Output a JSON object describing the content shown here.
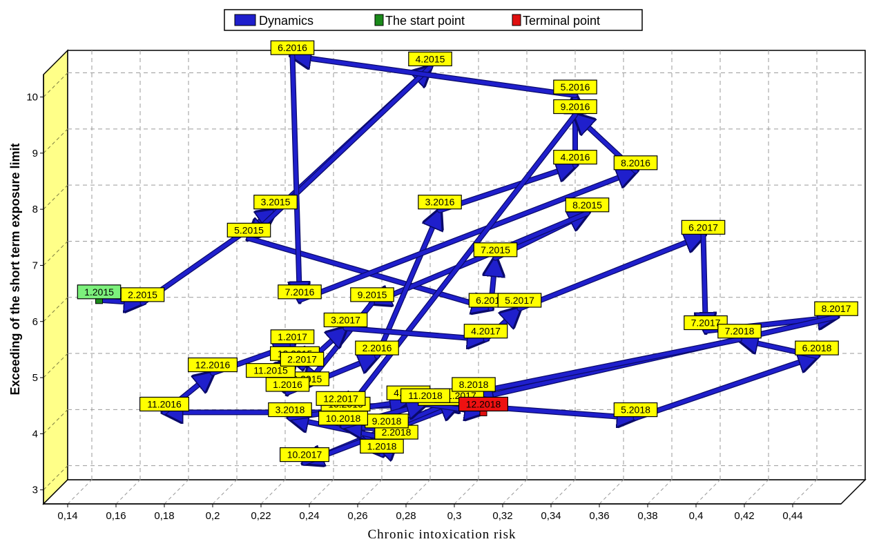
{
  "chart_data": {
    "type": "line",
    "title": "",
    "xlabel": "Chronic intoxication risk",
    "ylabel": "Exceeding of the short term exposure limit",
    "xlim": [
      0.13,
      0.46
    ],
    "ylim": [
      2.75,
      10.4
    ],
    "x_ticks": [
      0.14,
      0.16,
      0.18,
      0.2,
      0.22,
      0.24,
      0.26,
      0.28,
      0.3,
      0.32,
      0.34,
      0.36,
      0.38,
      0.4,
      0.42,
      0.44
    ],
    "x_tick_labels": [
      "0,14",
      "0,16",
      "0,18",
      "0,2",
      "0,22",
      "0,24",
      "0,26",
      "0,28",
      "0,3",
      "0,32",
      "0,34",
      "0,36",
      "0,38",
      "0,4",
      "0,42",
      "0,44"
    ],
    "y_ticks": [
      3,
      4,
      5,
      6,
      7,
      8,
      9,
      10
    ],
    "y_tick_labels": [
      "3",
      "4",
      "5",
      "6",
      "7",
      "8",
      "9",
      "10"
    ],
    "grid": true,
    "legend": {
      "placement": "top-center",
      "entries": [
        {
          "label": "Dynamics",
          "color": "#1f1fcc"
        },
        {
          "label": "The start point",
          "color": "#1a8a1a"
        },
        {
          "label": "Terminal point",
          "color": "#e01010"
        }
      ]
    },
    "series": [
      {
        "name": "Dynamics",
        "color": "#1f1fcc",
        "points": [
          {
            "label": "1.2015",
            "x": 0.143,
            "y": 5.95
          },
          {
            "label": "2.2015",
            "x": 0.161,
            "y": 5.9
          },
          {
            "label": "3.2015",
            "x": 0.216,
            "y": 7.55
          },
          {
            "label": "4.2015",
            "x": 0.28,
            "y": 10.1
          },
          {
            "label": "5.2015",
            "x": 0.205,
            "y": 7.05
          },
          {
            "label": "6.2015",
            "x": 0.305,
            "y": 5.8
          },
          {
            "label": "7.2015",
            "x": 0.307,
            "y": 6.7
          },
          {
            "label": "8.2015",
            "x": 0.345,
            "y": 7.5
          },
          {
            "label": "9.2015",
            "x": 0.256,
            "y": 5.9
          },
          {
            "label": "10.2015",
            "x": 0.228,
            "y": 4.4
          },
          {
            "label": "11.2015",
            "x": 0.214,
            "y": 4.55
          },
          {
            "label": "12.2015",
            "x": 0.224,
            "y": 4.85
          },
          {
            "label": "1.2016",
            "x": 0.221,
            "y": 4.3
          },
          {
            "label": "2.2016",
            "x": 0.258,
            "y": 4.95
          },
          {
            "label": "3.2016",
            "x": 0.284,
            "y": 7.55
          },
          {
            "label": "4.2016",
            "x": 0.34,
            "y": 8.35
          },
          {
            "label": "5.2016",
            "x": 0.34,
            "y": 9.6
          },
          {
            "label": "6.2016",
            "x": 0.223,
            "y": 10.3
          },
          {
            "label": "7.2016",
            "x": 0.226,
            "y": 5.95
          },
          {
            "label": "8.2016",
            "x": 0.365,
            "y": 8.25
          },
          {
            "label": "9.2016",
            "x": 0.34,
            "y": 9.25
          },
          {
            "label": "10.2016",
            "x": 0.245,
            "y": 3.95
          },
          {
            "label": "11.2016",
            "x": 0.17,
            "y": 3.95
          },
          {
            "label": "12.2016",
            "x": 0.19,
            "y": 4.65
          },
          {
            "label": "1.2017",
            "x": 0.223,
            "y": 5.15
          },
          {
            "label": "2.2017",
            "x": 0.227,
            "y": 4.75
          },
          {
            "label": "3.2017",
            "x": 0.245,
            "y": 5.45
          },
          {
            "label": "4.2017",
            "x": 0.303,
            "y": 5.25
          },
          {
            "label": "5.2017",
            "x": 0.317,
            "y": 5.8
          },
          {
            "label": "6.2017",
            "x": 0.393,
            "y": 7.1
          },
          {
            "label": "7.2017",
            "x": 0.394,
            "y": 5.4
          },
          {
            "label": "8.2017",
            "x": 0.448,
            "y": 5.65
          },
          {
            "label": "9.2017",
            "x": 0.284,
            "y": 4.05
          },
          {
            "label": "10.2017",
            "x": 0.228,
            "y": 3.05
          },
          {
            "label": "11.2017",
            "x": 0.292,
            "y": 4.1
          },
          {
            "label": "12.2017",
            "x": 0.243,
            "y": 4.05
          },
          {
            "label": "1.2018",
            "x": 0.26,
            "y": 3.2
          },
          {
            "label": "2.2018",
            "x": 0.266,
            "y": 3.45
          },
          {
            "label": "3.2018",
            "x": 0.222,
            "y": 3.85
          },
          {
            "label": "4.2018",
            "x": 0.271,
            "y": 4.15
          },
          {
            "label": "5.2018",
            "x": 0.365,
            "y": 3.85
          },
          {
            "label": "6.2018",
            "x": 0.44,
            "y": 4.95
          },
          {
            "label": "7.2018",
            "x": 0.408,
            "y": 5.25
          },
          {
            "label": "8.2018",
            "x": 0.298,
            "y": 4.3
          },
          {
            "label": "9.2018",
            "x": 0.262,
            "y": 3.65
          },
          {
            "label": "10.2018",
            "x": 0.244,
            "y": 3.7
          },
          {
            "label": "11.2018",
            "x": 0.278,
            "y": 4.1
          },
          {
            "label": "12.2018",
            "x": 0.302,
            "y": 3.95
          }
        ]
      }
    ],
    "start_point": {
      "label": "1.2015",
      "x": 0.143,
      "y": 5.95
    },
    "terminal_point": {
      "label": "12.2018",
      "x": 0.302,
      "y": 3.95
    }
  },
  "colors": {
    "line": "#1f1fcc",
    "line_edge": "#0a0a6a",
    "label_fill": "#ffff00",
    "start_fill": "#7cf07c",
    "terminal_fill": "#ee1111",
    "side_wall": "#ffff88",
    "grid": "#9a9a9a"
  }
}
